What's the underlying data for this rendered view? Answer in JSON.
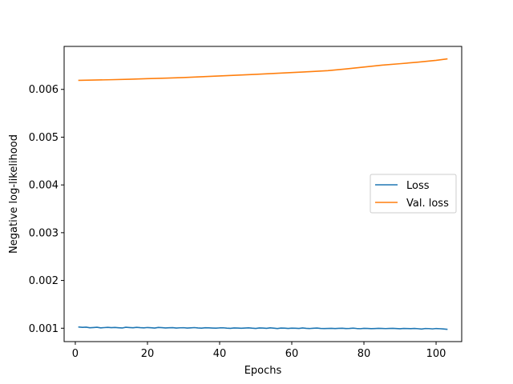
{
  "chart_data": {
    "type": "line",
    "title": "",
    "xlabel": "Epochs",
    "ylabel": "Negative log-likelihood",
    "xlim": [
      -3.1,
      107.1
    ],
    "ylim": [
      0.00072,
      0.0069
    ],
    "xticks": [
      0,
      20,
      40,
      60,
      80,
      100
    ],
    "xtick_labels": [
      "0",
      "20",
      "40",
      "60",
      "80",
      "100"
    ],
    "yticks": [
      0.001,
      0.002,
      0.003,
      0.004,
      0.005,
      0.006
    ],
    "ytick_labels": [
      "0.001",
      "0.002",
      "0.003",
      "0.004",
      "0.005",
      "0.006"
    ],
    "grid": false,
    "legend": {
      "position": "center-right",
      "entries": [
        "Loss",
        "Val. loss"
      ]
    },
    "series": [
      {
        "name": "Loss",
        "color": "#1f77b4",
        "x": [
          1,
          2,
          3,
          4,
          5,
          6,
          7,
          8,
          9,
          10,
          11,
          12,
          13,
          14,
          15,
          16,
          17,
          18,
          19,
          20,
          21,
          22,
          23,
          24,
          25,
          26,
          27,
          28,
          29,
          30,
          31,
          32,
          33,
          34,
          35,
          36,
          37,
          38,
          39,
          40,
          41,
          42,
          43,
          44,
          45,
          46,
          47,
          48,
          49,
          50,
          51,
          52,
          53,
          54,
          55,
          56,
          57,
          58,
          59,
          60,
          61,
          62,
          63,
          64,
          65,
          66,
          67,
          68,
          69,
          70,
          71,
          72,
          73,
          74,
          75,
          76,
          77,
          78,
          79,
          80,
          81,
          82,
          83,
          84,
          85,
          86,
          87,
          88,
          89,
          90,
          91,
          92,
          93,
          94,
          95,
          96,
          97,
          98,
          99,
          100,
          101,
          102,
          103
        ],
        "y": [
          0.001025,
          0.001018,
          0.001022,
          0.00101,
          0.001015,
          0.00102,
          0.001008,
          0.001013,
          0.001018,
          0.001012,
          0.001016,
          0.00101,
          0.001005,
          0.00102,
          0.001015,
          0.00101,
          0.001018,
          0.001012,
          0.001008,
          0.001015,
          0.00101,
          0.001003,
          0.001016,
          0.001012,
          0.001006,
          0.00101,
          0.001012,
          0.001004,
          0.001009,
          0.001011,
          0.001003,
          0.001008,
          0.001013,
          0.001006,
          0.001002,
          0.00101,
          0.001008,
          0.001004,
          0.001001,
          0.001007,
          0.001009,
          0.001002,
          0.000998,
          0.001006,
          0.001004,
          0.000999,
          0.001003,
          0.001008,
          0.001001,
          0.000996,
          0.001005,
          0.001003,
          0.000998,
          0.001008,
          0.001002,
          0.000993,
          0.001004,
          0.001002,
          0.000996,
          0.001001,
          0.000999,
          0.000995,
          0.001006,
          0.000998,
          0.000994,
          0.001,
          0.001004,
          0.000996,
          0.000993,
          0.000995,
          0.000998,
          0.000994,
          0.000997,
          0.000999,
          0.000993,
          0.000995,
          0.001001,
          0.000994,
          0.00099,
          0.000997,
          0.000996,
          0.000991,
          0.000994,
          0.000998,
          0.000995,
          0.000992,
          0.000996,
          0.000997,
          0.000993,
          0.000989,
          0.000995,
          0.000993,
          0.000991,
          0.000995,
          0.00099,
          0.000983,
          0.000994,
          0.000992,
          0.000986,
          0.000994,
          0.00099,
          0.000985,
          0.000978
        ]
      },
      {
        "name": "Val. loss",
        "color": "#ff7f0e",
        "x": [
          1,
          5,
          10,
          15,
          20,
          25,
          30,
          35,
          40,
          45,
          50,
          55,
          60,
          65,
          70,
          75,
          80,
          85,
          90,
          95,
          100,
          103
        ],
        "y": [
          0.00619,
          0.006195,
          0.006203,
          0.006213,
          0.006224,
          0.006236,
          0.006248,
          0.006264,
          0.006282,
          0.006298,
          0.006315,
          0.006333,
          0.006352,
          0.006372,
          0.006393,
          0.006428,
          0.006468,
          0.006508,
          0.006538,
          0.00657,
          0.006608,
          0.006638
        ]
      }
    ]
  }
}
